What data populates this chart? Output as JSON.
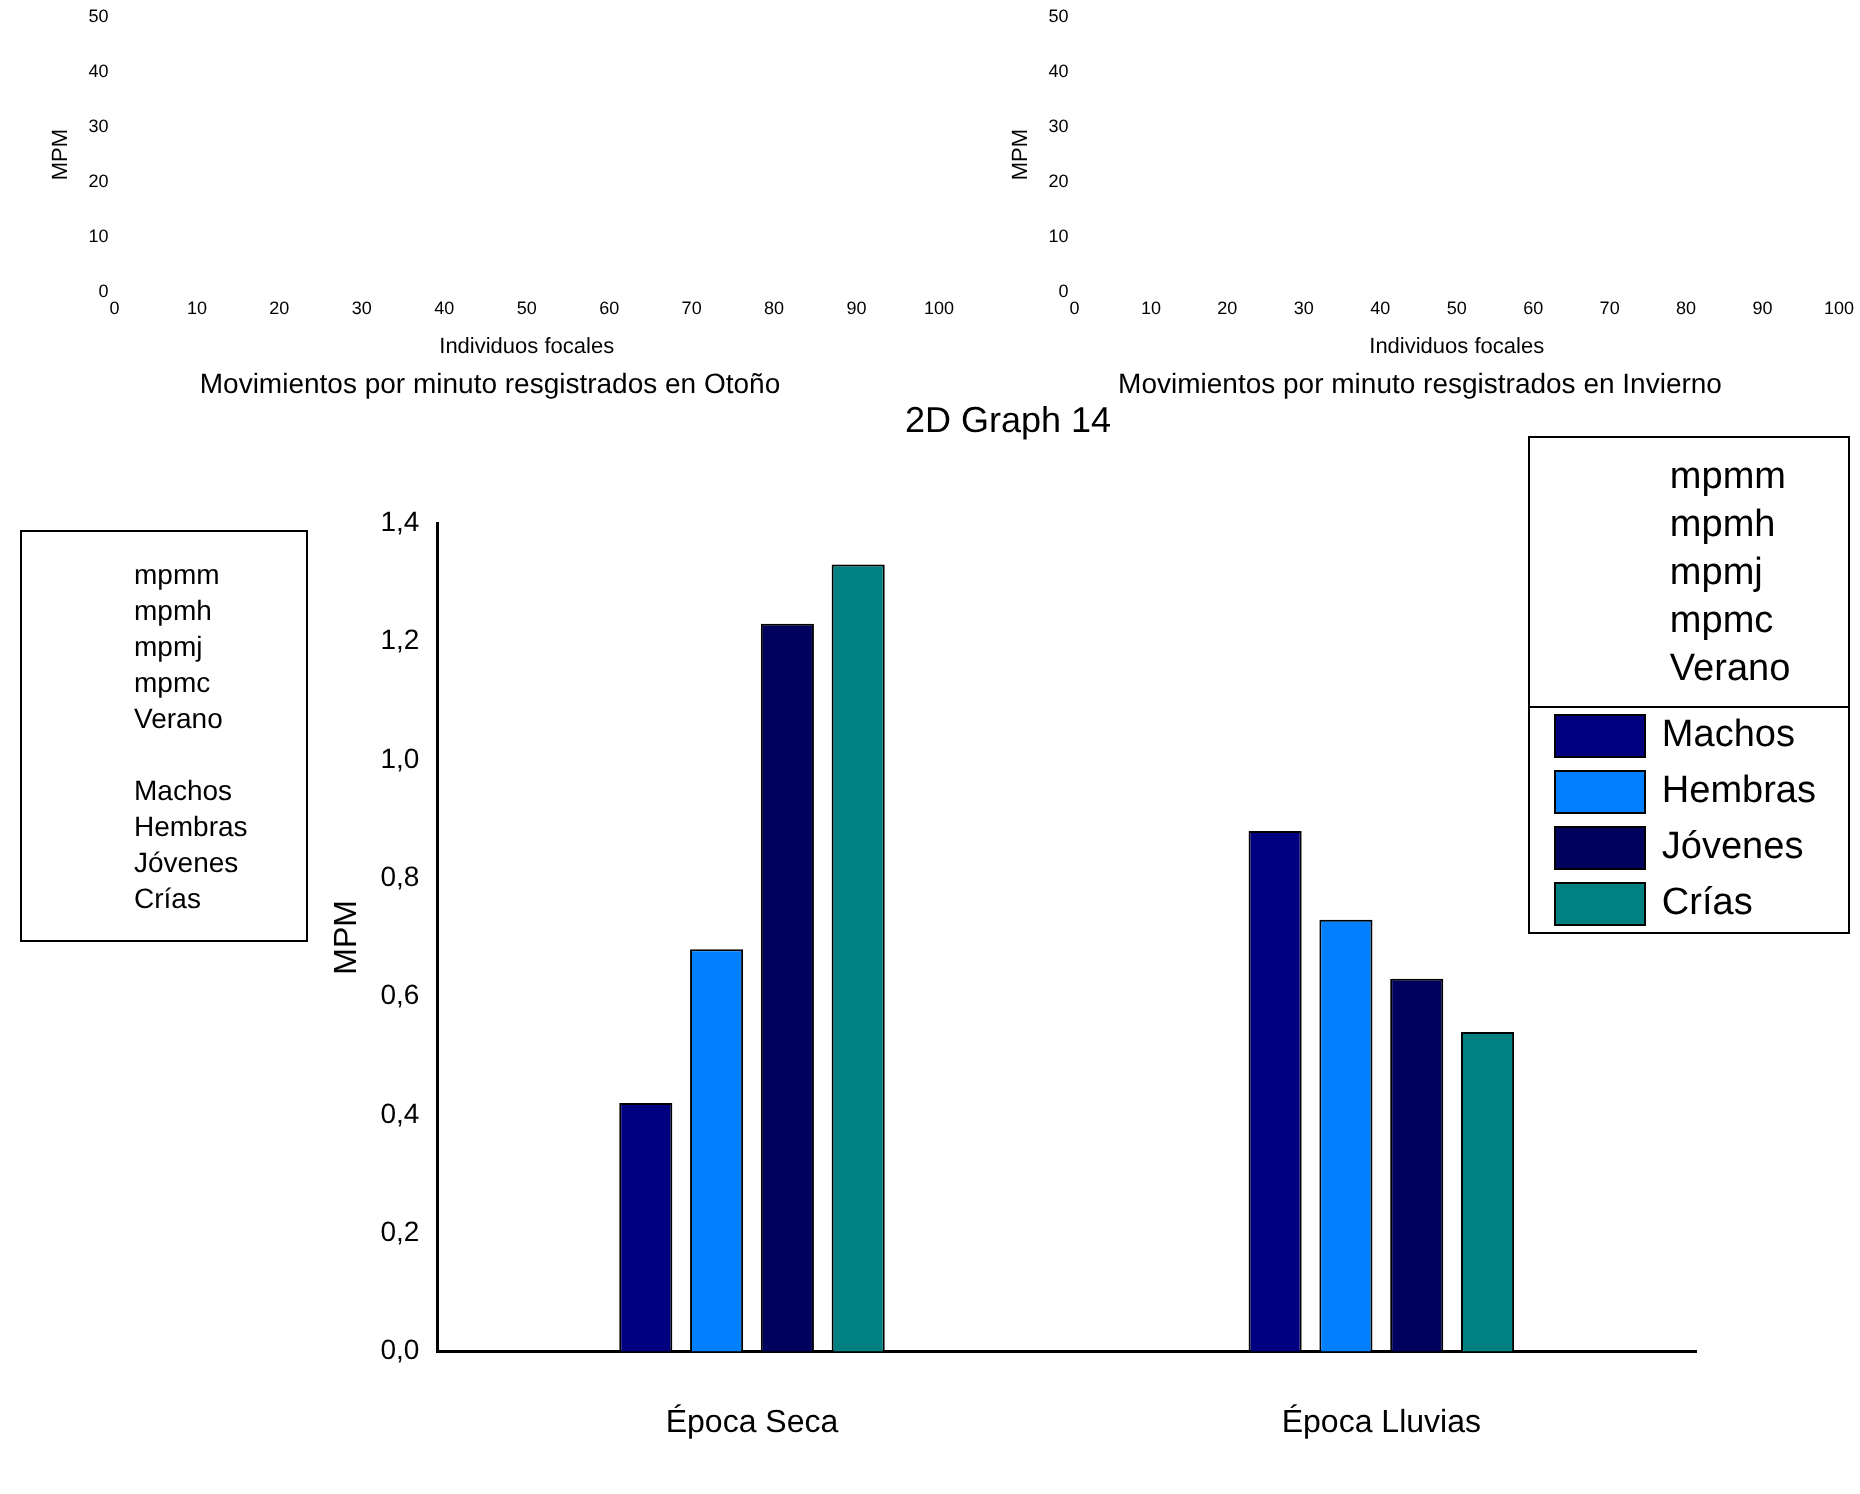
{
  "chart_data": [
    {
      "type": "scatter",
      "title": "Movimientos por minuto resgistrados en Otoño",
      "xlabel": "Individuos focales",
      "ylabel": "MPM",
      "xlim": [
        0,
        100
      ],
      "xticks": [
        0,
        10,
        20,
        30,
        40,
        50,
        60,
        70,
        80,
        90,
        100
      ],
      "ylim": [
        0,
        50
      ],
      "yticks": [
        0,
        10,
        20,
        30,
        40,
        50
      ],
      "grid": false,
      "legend": false
    },
    {
      "type": "scatter",
      "title": "Movimientos por minuto resgistrados en Invierno",
      "xlabel": "Individuos focales",
      "ylabel": "MPM",
      "xlim": [
        0,
        100
      ],
      "xticks": [
        0,
        10,
        20,
        30,
        40,
        50,
        60,
        70,
        80,
        90,
        100
      ],
      "ylim": [
        0,
        50
      ],
      "yticks": [
        0,
        10,
        20,
        30,
        40,
        50
      ],
      "grid": false,
      "legend": false
    },
    {
      "type": "bar",
      "title": "2D Graph 14",
      "ylabel": "MPM",
      "categories": [
        "Época Seca",
        "Época Lluvias"
      ],
      "series": [
        {
          "name": "Machos",
          "color": "#000080",
          "values": [
            0.42,
            0.88
          ]
        },
        {
          "name": "Hembras",
          "color": "#0080ff",
          "values": [
            0.68,
            0.73
          ]
        },
        {
          "name": "Jóvenes",
          "color": "#00005e",
          "values": [
            1.23,
            0.63
          ]
        },
        {
          "name": "Crías",
          "color": "#008080",
          "values": [
            1.33,
            0.54
          ]
        }
      ],
      "ylim": [
        0,
        1.4
      ],
      "yticks": [
        {
          "value": 0,
          "label": "0,0"
        },
        {
          "value": 0.2,
          "label": "0,2"
        },
        {
          "value": 0.4,
          "label": "0,4"
        },
        {
          "value": 0.6,
          "label": "0,6"
        },
        {
          "value": 0.8,
          "label": "0,8"
        },
        {
          "value": 1,
          "label": "1,0"
        },
        {
          "value": 1.2,
          "label": "1,2"
        },
        {
          "value": 1.4,
          "label": "1,4"
        }
      ],
      "grid": false,
      "legend": "top right",
      "annotations": [
        "mpmm\nmpmh\nmpmj\nmpmc\nVerano\n\nMachos\nHembras\nJóvenes\nCrías",
        "mpmm\nmpmh\nmpmj\nmpmc\nVerano"
      ]
    }
  ]
}
